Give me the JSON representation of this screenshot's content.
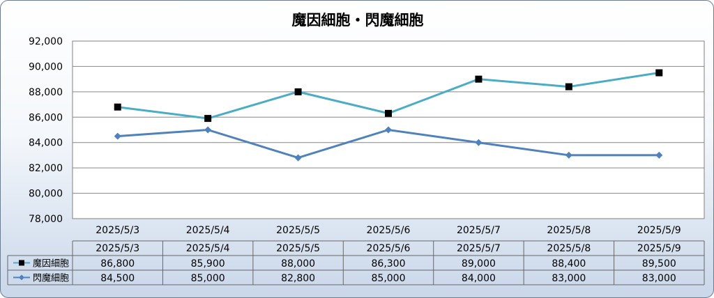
{
  "chart_data": {
    "type": "line",
    "title": "魔因細胞・閃魔細胞",
    "categories": [
      "2025/5/3",
      "2025/5/4",
      "2025/5/5",
      "2025/5/6",
      "2025/5/7",
      "2025/5/8",
      "2025/5/9"
    ],
    "series": [
      {
        "name": "魔因細胞",
        "values": [
          86800,
          85900,
          88000,
          86300,
          89000,
          88400,
          89500
        ],
        "color": "#4bacc6",
        "marker": "square"
      },
      {
        "name": "閃魔細胞",
        "values": [
          84500,
          85000,
          82800,
          85000,
          84000,
          83000,
          83000
        ],
        "color": "#4f81bd",
        "marker": "diamond"
      }
    ],
    "y_ticks": [
      "78,000",
      "80,000",
      "82,000",
      "84,000",
      "86,000",
      "88,000",
      "90,000",
      "92,000"
    ],
    "ylim": [
      78000,
      92000
    ],
    "grid": true,
    "data_table": {
      "rows": [
        [
          "86,800",
          "85,900",
          "88,000",
          "86,300",
          "89,000",
          "88,400",
          "89,500"
        ],
        [
          "84,500",
          "85,000",
          "82,800",
          "85,000",
          "84,000",
          "83,000",
          "83,000"
        ]
      ]
    }
  }
}
